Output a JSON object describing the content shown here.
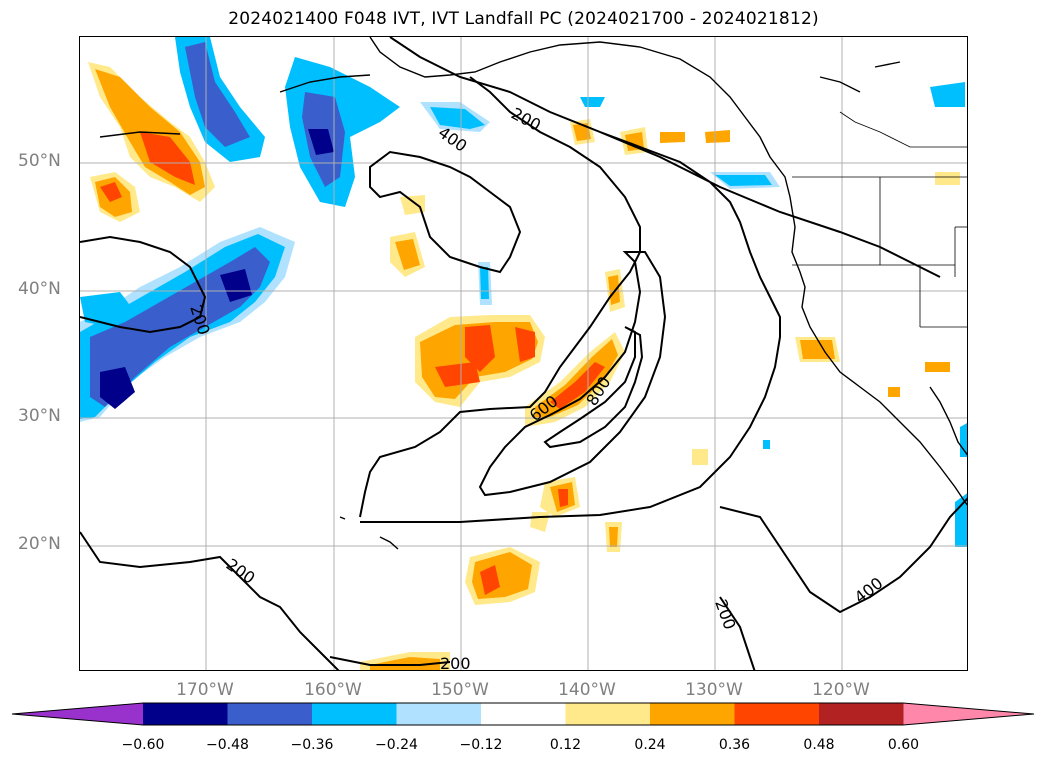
{
  "title": "2024021400 F048 IVT, IVT Landfall PC (2024021700 - 2024021812)",
  "lat_labels": [
    "50°N",
    "40°N",
    "30°N",
    "20°N"
  ],
  "lon_labels": [
    "170°W",
    "160°W",
    "150°W",
    "140°W",
    "130°W",
    "120°W"
  ],
  "contour_labels": [
    "200",
    "400",
    "200",
    "600",
    "800",
    "200",
    "200",
    "400",
    "200"
  ],
  "colorbar": {
    "ticks": [
      "−0.60",
      "−0.48",
      "−0.36",
      "−0.24",
      "−0.12",
      "0.12",
      "0.24",
      "0.36",
      "0.48",
      "0.60"
    ],
    "colors": [
      "#9932cc",
      "#00008b",
      "#3a5fcd",
      "#00bfff",
      "#b0e2ff",
      "#ffffff",
      "#ffe98a",
      "#ffa500",
      "#ff4500",
      "#b22222",
      "#ff88aa"
    ]
  },
  "colors": {
    "land_line": "#000000",
    "grid": "#b0b0b0",
    "contour": "#000000"
  }
}
